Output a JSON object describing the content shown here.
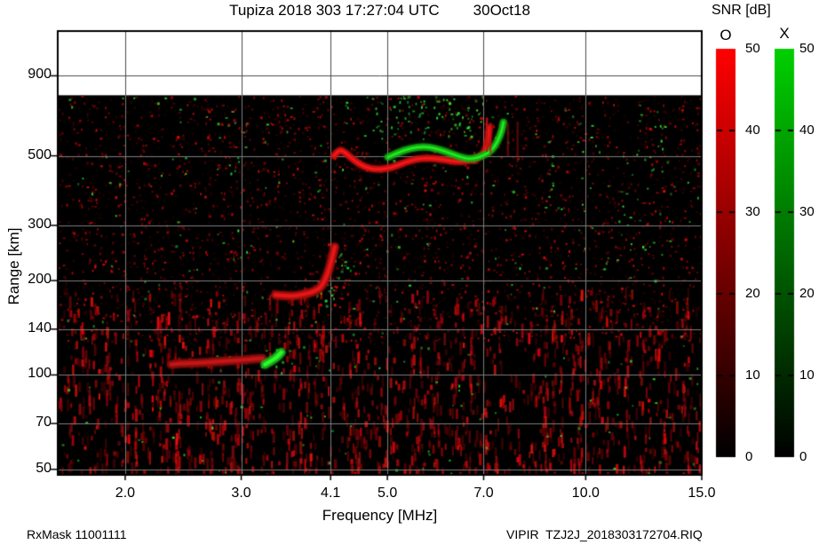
{
  "header": {
    "title_left": "Tupiza 2018 303 17:27:04 UTC",
    "title_right": "30Oct18"
  },
  "footer": {
    "rx_mask": "RxMask 11001111",
    "file_id": "VIPIR  TZJ2J_2018303172704.RIQ"
  },
  "chart_data": {
    "type": "heatmap",
    "title": "Tupiza 2018 303 17:27:04 UTC   30Oct18",
    "xlabel": "Frequency [MHz]",
    "ylabel": "Range [km]",
    "x_scale": "log",
    "y_scale": "log",
    "x_ticks": [
      "2.0",
      "3.0",
      "4.1",
      "5.0",
      "7.0",
      "10.0",
      "15.0"
    ],
    "x_tick_values": [
      2.0,
      3.0,
      4.1,
      5.0,
      7.0,
      10.0,
      15.0
    ],
    "y_ticks": [
      "900",
      "500",
      "300",
      "200",
      "140",
      "100",
      "70",
      "50"
    ],
    "y_tick_values": [
      900,
      500,
      300,
      200,
      140,
      100,
      70,
      50
    ],
    "x_range_mhz": [
      1.58,
      15.0
    ],
    "y_range_km": [
      48,
      1250
    ],
    "data_max_range_km": 780,
    "plot_background": "#000000",
    "gridline_color_dark": "#7d7d7d",
    "gridline_color_light": "#4a4a4a",
    "colorbar": {
      "title": "SNR [dB]",
      "o_label": "O",
      "x_label": "X",
      "min": 0,
      "max": 50,
      "ticks": [
        "50",
        "40",
        "30",
        "20",
        "10",
        "0"
      ],
      "tick_values": [
        50,
        40,
        30,
        20,
        10,
        0
      ],
      "o_top_color": "#ff0000",
      "x_top_color": "#00d000",
      "bottom_color": "#000000"
    },
    "noise": {
      "seed": 20181303,
      "o_color": "#cc1a1a",
      "x_color": "#22cc22",
      "red_dot_count": 3300,
      "red_dash_count": 1150,
      "red_dash_columns": 95,
      "green_uniform_count": 270,
      "green_clusters": [
        {
          "f": [
            4.7,
            7.0
          ],
          "r": [
            580,
            780
          ],
          "n": 85
        },
        {
          "f": [
            4.2,
            4.5
          ],
          "r": [
            205,
            245
          ],
          "n": 14
        },
        {
          "f": [
            3.9,
            4.15
          ],
          "r": [
            165,
            200
          ],
          "n": 12
        },
        {
          "f": [
            3.2,
            3.5
          ],
          "r": [
            100,
            122
          ],
          "n": 10
        },
        {
          "f": [
            8.5,
            13.5
          ],
          "r": [
            250,
            700
          ],
          "n": 45
        },
        {
          "f": [
            2.6,
            3.3
          ],
          "r": [
            400,
            700
          ],
          "n": 12
        }
      ]
    },
    "traces": [
      {
        "name": "F-region O-mode echo",
        "mode": "O",
        "color": "#d01212",
        "width": 5,
        "points_mhz_km": [
          [
            4.15,
            500
          ],
          [
            4.22,
            525
          ],
          [
            4.32,
            512
          ],
          [
            4.45,
            483
          ],
          [
            4.62,
            460
          ],
          [
            4.8,
            452
          ],
          [
            5.06,
            456
          ],
          [
            5.35,
            480
          ],
          [
            5.69,
            494
          ],
          [
            6.06,
            487
          ],
          [
            6.45,
            477
          ],
          [
            6.82,
            487
          ],
          [
            7.03,
            512
          ],
          [
            7.1,
            556
          ],
          [
            7.14,
            615
          ]
        ]
      },
      {
        "name": "F-region X-mode echo",
        "mode": "X",
        "color": "#17b417",
        "width": 5,
        "points_mhz_km": [
          [
            5.01,
            495
          ],
          [
            5.22,
            515
          ],
          [
            5.42,
            528
          ],
          [
            5.68,
            536
          ],
          [
            5.91,
            528
          ],
          [
            6.15,
            515
          ],
          [
            6.43,
            496
          ],
          [
            6.69,
            487
          ],
          [
            6.97,
            499
          ],
          [
            7.19,
            519
          ],
          [
            7.34,
            552
          ],
          [
            7.46,
            601
          ],
          [
            7.5,
            640
          ]
        ]
      },
      {
        "name": "F1-cusp O-mode echo",
        "mode": "O",
        "color": "#a81010",
        "width": 7,
        "points_mhz_km": [
          [
            3.38,
            180
          ],
          [
            3.54,
            178
          ],
          [
            3.71,
            180
          ],
          [
            3.89,
            185
          ],
          [
            3.98,
            192
          ],
          [
            4.07,
            213
          ],
          [
            4.12,
            236
          ],
          [
            4.16,
            256
          ]
        ]
      },
      {
        "name": "E-region O-mode echo",
        "mode": "O",
        "color": "#8f1010",
        "width": 7,
        "points_mhz_km": [
          [
            2.35,
            108
          ],
          [
            2.44,
            109
          ],
          [
            2.56,
            109
          ],
          [
            2.72,
            110
          ],
          [
            2.89,
            111
          ],
          [
            3.08,
            112
          ],
          [
            3.23,
            113
          ]
        ]
      },
      {
        "name": "E-region X-mode patch",
        "mode": "X",
        "color": "#1fbb1f",
        "width": 7,
        "points_mhz_km": [
          [
            3.26,
            108
          ],
          [
            3.33,
            111
          ],
          [
            3.4,
            114
          ],
          [
            3.45,
            118
          ]
        ]
      }
    ],
    "spread_spikes_mhz_km": [
      {
        "f": 7.08,
        "r1": 519,
        "r2": 658,
        "alpha": 0.9
      },
      {
        "f": 7.17,
        "r1": 515,
        "r2": 634,
        "alpha": 0.75
      },
      {
        "f": 7.62,
        "r1": 500,
        "r2": 630,
        "alpha": 0.45
      },
      {
        "f": 7.88,
        "r1": 480,
        "r2": 640,
        "alpha": 0.4
      }
    ]
  }
}
